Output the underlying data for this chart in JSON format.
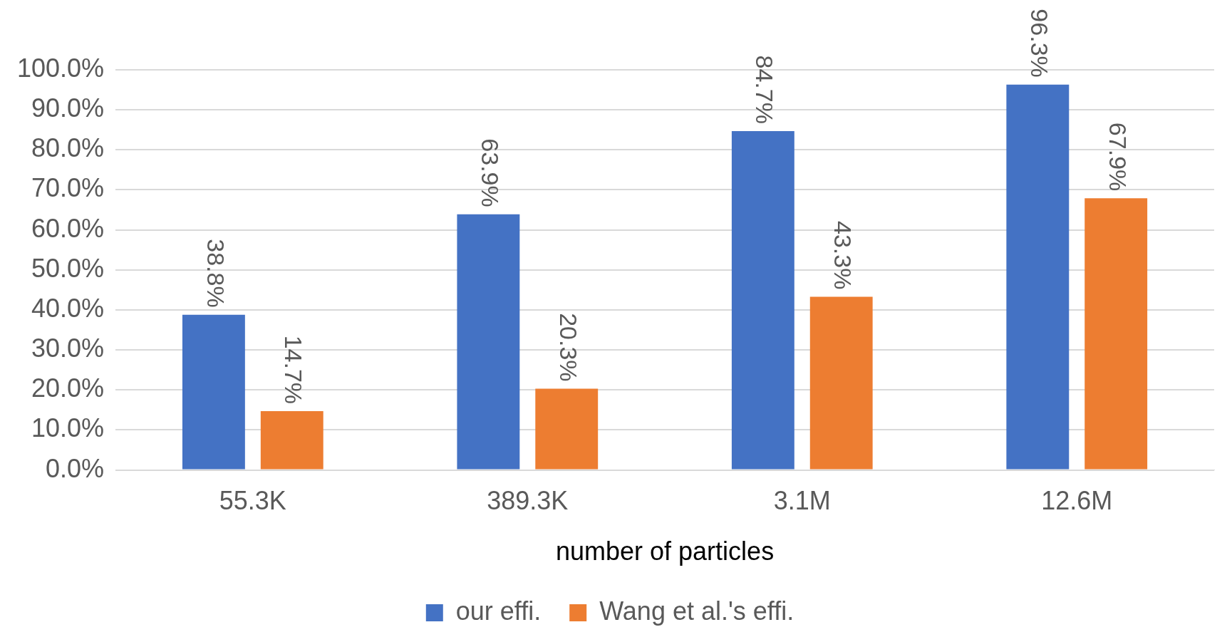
{
  "chart_data": {
    "type": "bar",
    "xlabel": "number of particles",
    "categories": [
      "55.3K",
      "389.3K",
      "3.1M",
      "12.6M"
    ],
    "series": [
      {
        "name": "our effi.",
        "color": "#4472c4",
        "values": [
          38.8,
          63.9,
          84.7,
          96.3
        ],
        "value_labels": [
          "38.8%",
          "63.9%",
          "84.7%",
          "96.3%"
        ]
      },
      {
        "name": "Wang et al.'s effi.",
        "color": "#ed7d31",
        "values": [
          14.7,
          20.3,
          43.3,
          67.9
        ],
        "value_labels": [
          "14.7%",
          "20.3%",
          "43.3%",
          "67.9%"
        ]
      }
    ],
    "ylim": [
      0,
      100
    ],
    "yticks": [
      {
        "value": 0,
        "label": "0.0%"
      },
      {
        "value": 10,
        "label": "10.0%"
      },
      {
        "value": 20,
        "label": "20.0%"
      },
      {
        "value": 30,
        "label": "30.0%"
      },
      {
        "value": 40,
        "label": "40.0%"
      },
      {
        "value": 50,
        "label": "50.0%"
      },
      {
        "value": 60,
        "label": "60.0%"
      },
      {
        "value": 70,
        "label": "70.0%"
      },
      {
        "value": 80,
        "label": "80.0%"
      },
      {
        "value": 90,
        "label": "90.0%"
      },
      {
        "value": 100,
        "label": "100.0%"
      }
    ],
    "grid": "y",
    "legend": "bottom"
  }
}
